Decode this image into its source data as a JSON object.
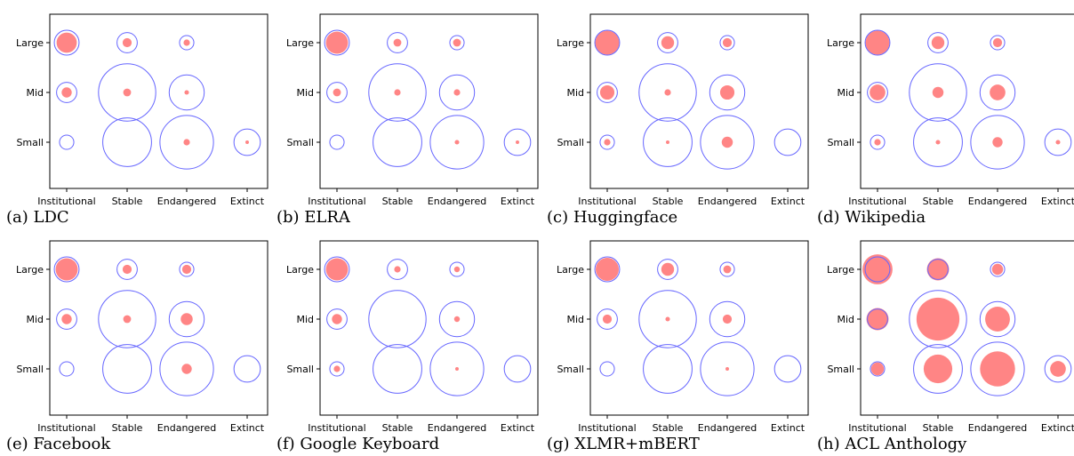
{
  "chart_data": [
    {
      "type": "scatter",
      "caption": "(a) LDC",
      "x_categories": [
        "Institutional",
        "Stable",
        "Endangered",
        "Extinct"
      ],
      "y_categories": [
        "Small",
        "Mid",
        "Large"
      ],
      "marker_colors": {
        "total": "#6666ff",
        "covered": "#ff6666"
      },
      "total_size": [
        [
          5,
          58,
          70,
          17
        ],
        [
          10,
          80,
          30,
          0
        ],
        [
          15,
          10,
          5,
          0
        ]
      ],
      "covered_size": [
        [
          0,
          0,
          1,
          0.3
        ],
        [
          2.5,
          1.5,
          0.5,
          0
        ],
        [
          10,
          2,
          1,
          0
        ]
      ]
    },
    {
      "type": "scatter",
      "caption": "(b) ELRA",
      "x_categories": [
        "Institutional",
        "Stable",
        "Endangered",
        "Extinct"
      ],
      "y_categories": [
        "Small",
        "Mid",
        "Large"
      ],
      "marker_colors": {
        "total": "#6666ff",
        "covered": "#ff6666"
      },
      "total_size": [
        [
          5,
          58,
          70,
          17
        ],
        [
          10,
          80,
          30,
          0
        ],
        [
          15,
          10,
          5,
          0
        ]
      ],
      "covered_size": [
        [
          0,
          0,
          0.5,
          0.3
        ],
        [
          1.5,
          1,
          1,
          0
        ],
        [
          12,
          1.5,
          1.5,
          0
        ]
      ]
    },
    {
      "type": "scatter",
      "caption": "(c) Huggingface",
      "x_categories": [
        "Institutional",
        "Stable",
        "Endangered",
        "Extinct"
      ],
      "y_categories": [
        "Small",
        "Mid",
        "Large"
      ],
      "marker_colors": {
        "total": "#6666ff",
        "covered": "#ff6666"
      },
      "total_size": [
        [
          5,
          58,
          70,
          17
        ],
        [
          10,
          80,
          30,
          0
        ],
        [
          15,
          10,
          5,
          0
        ]
      ],
      "covered_size": [
        [
          1,
          0.3,
          3,
          0
        ],
        [
          5,
          1,
          5,
          0
        ],
        [
          14,
          4,
          2,
          0
        ]
      ]
    },
    {
      "type": "scatter",
      "caption": "(d) Wikipedia",
      "x_categories": [
        "Institutional",
        "Stable",
        "Endangered",
        "Extinct"
      ],
      "y_categories": [
        "Small",
        "Mid",
        "Large"
      ],
      "marker_colors": {
        "total": "#6666ff",
        "covered": "#ff6666"
      },
      "total_size": [
        [
          5,
          58,
          70,
          17
        ],
        [
          10,
          80,
          30,
          0
        ],
        [
          15,
          10,
          5,
          0
        ]
      ],
      "covered_size": [
        [
          1,
          0.5,
          2.5,
          0.5
        ],
        [
          6,
          3,
          6,
          0
        ],
        [
          14,
          4,
          2,
          0
        ]
      ]
    },
    {
      "type": "scatter",
      "caption": "(e) Facebook",
      "x_categories": [
        "Institutional",
        "Stable",
        "Endangered",
        "Extinct"
      ],
      "y_categories": [
        "Small",
        "Mid",
        "Large"
      ],
      "marker_colors": {
        "total": "#6666ff",
        "covered": "#ff6666"
      },
      "total_size": [
        [
          5,
          58,
          70,
          17
        ],
        [
          10,
          80,
          30,
          0
        ],
        [
          15,
          10,
          5,
          0
        ]
      ],
      "covered_size": [
        [
          0,
          0,
          2.5,
          0
        ],
        [
          2.5,
          1.5,
          3.5,
          0
        ],
        [
          12,
          2,
          2,
          0
        ]
      ]
    },
    {
      "type": "scatter",
      "caption": "(f) Google Keyboard",
      "x_categories": [
        "Institutional",
        "Stable",
        "Endangered",
        "Extinct"
      ],
      "y_categories": [
        "Small",
        "Mid",
        "Large"
      ],
      "marker_colors": {
        "total": "#6666ff",
        "covered": "#ff6666"
      },
      "total_size": [
        [
          5,
          58,
          70,
          17
        ],
        [
          10,
          80,
          30,
          0
        ],
        [
          15,
          10,
          5,
          0
        ]
      ],
      "covered_size": [
        [
          1,
          0,
          0.3,
          0
        ],
        [
          2.5,
          0,
          0.8,
          0
        ],
        [
          12,
          1,
          0.8,
          0
        ]
      ]
    },
    {
      "type": "scatter",
      "caption": "(g) XLMR+mBERT",
      "x_categories": [
        "Institutional",
        "Stable",
        "Endangered",
        "Extinct"
      ],
      "y_categories": [
        "Small",
        "Mid",
        "Large"
      ],
      "marker_colors": {
        "total": "#6666ff",
        "covered": "#ff6666"
      },
      "total_size": [
        [
          5,
          58,
          70,
          17
        ],
        [
          10,
          80,
          30,
          0
        ],
        [
          15,
          10,
          5,
          0
        ]
      ],
      "covered_size": [
        [
          0,
          0,
          0.3,
          0
        ],
        [
          2,
          0.5,
          2,
          0
        ],
        [
          13,
          4,
          1.5,
          0
        ]
      ]
    },
    {
      "type": "scatter",
      "caption": "(h) ACL Anthology",
      "x_categories": [
        "Institutional",
        "Stable",
        "Endangered",
        "Extinct"
      ],
      "y_categories": [
        "Small",
        "Mid",
        "Large"
      ],
      "marker_colors": {
        "total": "#6666ff",
        "covered": "#ff6666"
      },
      "total_size": [
        [
          5,
          58,
          70,
          17
        ],
        [
          10,
          80,
          30,
          0
        ],
        [
          15,
          10,
          5,
          0
        ]
      ],
      "covered_size": [
        [
          4,
          20,
          30,
          6
        ],
        [
          12,
          45,
          15,
          0
        ],
        [
          22,
          12,
          3,
          0
        ]
      ]
    }
  ]
}
